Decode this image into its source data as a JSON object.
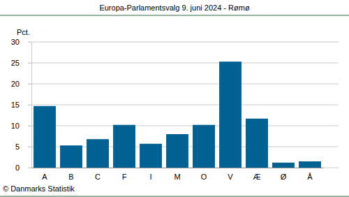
{
  "chart_data": {
    "type": "bar",
    "title": "Europa-Parlamentsvalg 9. juni 2024 - Rømø",
    "y_label": "Pct.",
    "source": "© Danmarks Statistik",
    "categories": [
      "A",
      "B",
      "C",
      "F",
      "I",
      "M",
      "O",
      "V",
      "Æ",
      "Ø",
      "Å"
    ],
    "values": [
      14.7,
      5.3,
      6.8,
      10.2,
      5.7,
      8.0,
      10.2,
      25.3,
      11.7,
      1.2,
      1.5
    ],
    "color": "#006192",
    "ylim": [
      0,
      30
    ],
    "yticks": [
      0,
      5,
      10,
      15,
      20,
      25,
      30
    ],
    "grid": true
  }
}
